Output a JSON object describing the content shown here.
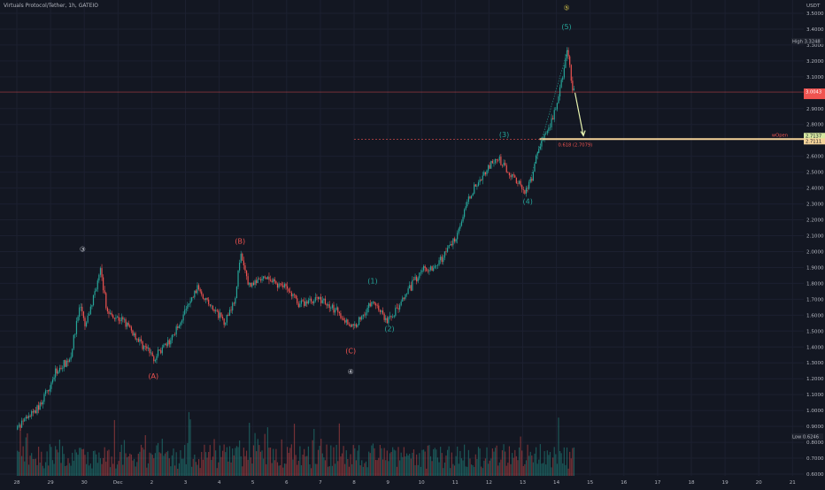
{
  "header": {
    "symbol": "Virtuals Protocol/Tether, 1h, GATEIO",
    "currency": "USDT"
  },
  "chart_data": {
    "type": "candlestick",
    "y_axis": {
      "labels": [
        "3.5000",
        "3.4000",
        "3.3000",
        "3.2000",
        "3.1000",
        "2.9000",
        "2.8000",
        "2.6000",
        "2.5000",
        "2.4000",
        "2.3000",
        "2.2000",
        "2.1000",
        "2.0000",
        "1.9000",
        "1.8000",
        "1.7000",
        "1.6000",
        "1.5000",
        "1.4000",
        "1.3000",
        "1.2000",
        "1.1000",
        "1.0000",
        "0.9000",
        "0.8000",
        "0.7000",
        "0.6000"
      ],
      "values": [
        3.5,
        3.4,
        3.3,
        3.2,
        3.1,
        2.9,
        2.8,
        2.6,
        2.5,
        2.4,
        2.3,
        2.2,
        2.1,
        2.0,
        1.9,
        1.8,
        1.7,
        1.6,
        1.5,
        1.4,
        1.3,
        1.2,
        1.1,
        1.0,
        0.9,
        0.8,
        0.7,
        0.6
      ],
      "range": [
        0.6,
        3.55
      ]
    },
    "x_axis": {
      "labels": [
        "28",
        "29",
        "30",
        "Dec",
        "2",
        "3",
        "4",
        "5",
        "6",
        "7",
        "8",
        "9",
        "10",
        "11",
        "12",
        "13",
        "14",
        "15",
        "16",
        "17",
        "18",
        "19",
        "20",
        "21"
      ],
      "range_days": [
        "Nov 28",
        "Dec 21"
      ]
    },
    "anchors": [
      {
        "t": 0.0,
        "p": 0.88
      },
      {
        "t": 0.7,
        "p": 1.03
      },
      {
        "t": 1.2,
        "p": 1.25
      },
      {
        "t": 1.6,
        "p": 1.33
      },
      {
        "t": 1.9,
        "p": 1.67
      },
      {
        "t": 2.05,
        "p": 1.52
      },
      {
        "t": 2.5,
        "p": 1.88
      },
      {
        "t": 2.7,
        "p": 1.62
      },
      {
        "t": 3.2,
        "p": 1.56
      },
      {
        "t": 3.6,
        "p": 1.45
      },
      {
        "t": 4.1,
        "p": 1.33
      },
      {
        "t": 4.6,
        "p": 1.45
      },
      {
        "t": 5.0,
        "p": 1.62
      },
      {
        "t": 5.4,
        "p": 1.78
      },
      {
        "t": 5.8,
        "p": 1.64
      },
      {
        "t": 6.2,
        "p": 1.56
      },
      {
        "t": 6.5,
        "p": 1.72
      },
      {
        "t": 6.65,
        "p": 1.98
      },
      {
        "t": 6.9,
        "p": 1.79
      },
      {
        "t": 7.4,
        "p": 1.83
      },
      {
        "t": 8.0,
        "p": 1.77
      },
      {
        "t": 8.4,
        "p": 1.67
      },
      {
        "t": 9.0,
        "p": 1.71
      },
      {
        "t": 9.5,
        "p": 1.62
      },
      {
        "t": 10.0,
        "p": 1.52
      },
      {
        "t": 10.4,
        "p": 1.64
      },
      {
        "t": 10.6,
        "p": 1.69
      },
      {
        "t": 11.0,
        "p": 1.56
      },
      {
        "t": 11.4,
        "p": 1.67
      },
      {
        "t": 12.0,
        "p": 1.88
      },
      {
        "t": 12.5,
        "p": 1.92
      },
      {
        "t": 13.0,
        "p": 2.08
      },
      {
        "t": 13.5,
        "p": 2.37
      },
      {
        "t": 14.0,
        "p": 2.53
      },
      {
        "t": 14.3,
        "p": 2.58
      },
      {
        "t": 14.7,
        "p": 2.48
      },
      {
        "t": 15.1,
        "p": 2.38
      },
      {
        "t": 15.3,
        "p": 2.46
      },
      {
        "t": 15.5,
        "p": 2.67
      },
      {
        "t": 15.8,
        "p": 2.76
      },
      {
        "t": 16.1,
        "p": 2.98
      },
      {
        "t": 16.35,
        "p": 3.28
      },
      {
        "t": 16.5,
        "p": 3.01
      }
    ],
    "wave_labels": [
      {
        "text": "③",
        "t": 1.95,
        "p": 2.0,
        "color": "#d1d4dc"
      },
      {
        "text": "(A)",
        "t": 4.05,
        "p": 1.2,
        "color": "#ef5350"
      },
      {
        "text": "(B)",
        "t": 6.62,
        "p": 2.05,
        "color": "#ef5350"
      },
      {
        "text": "(C)",
        "t": 9.9,
        "p": 1.36,
        "color": "#ef5350"
      },
      {
        "text": "④",
        "t": 9.9,
        "p": 1.23,
        "color": "#d1d4dc"
      },
      {
        "text": "(1)",
        "t": 10.55,
        "p": 1.8,
        "color": "#26a69a"
      },
      {
        "text": "(2)",
        "t": 11.05,
        "p": 1.5,
        "color": "#26a69a"
      },
      {
        "text": "(3)",
        "t": 14.45,
        "p": 2.72,
        "color": "#26a69a"
      },
      {
        "text": "(4)",
        "t": 15.15,
        "p": 2.3,
        "color": "#26a69a"
      },
      {
        "text": "(5)",
        "t": 16.3,
        "p": 3.4,
        "color": "#26a69a"
      },
      {
        "text": "⑤",
        "t": 16.3,
        "p": 3.52,
        "color": "#d4c34a"
      }
    ],
    "price_levels": {
      "current": "3.0043",
      "current_value": 3.0043,
      "high_label": "High",
      "high_value": "3.3248",
      "high_num": 3.3248,
      "open_label": "wOpen",
      "open_value": "2.7137",
      "open_num": 2.7137,
      "fib_label": "0.618 (2.7079)",
      "fib_num": 2.7079,
      "fib_tag": "2.7111",
      "low_label": "Low",
      "low_value": "0.6246"
    },
    "colors": {
      "up": "#26a69a",
      "down": "#ef5350",
      "background": "#131722",
      "fib": "#f5d49a",
      "arrow": "#e8f5b0"
    }
  }
}
